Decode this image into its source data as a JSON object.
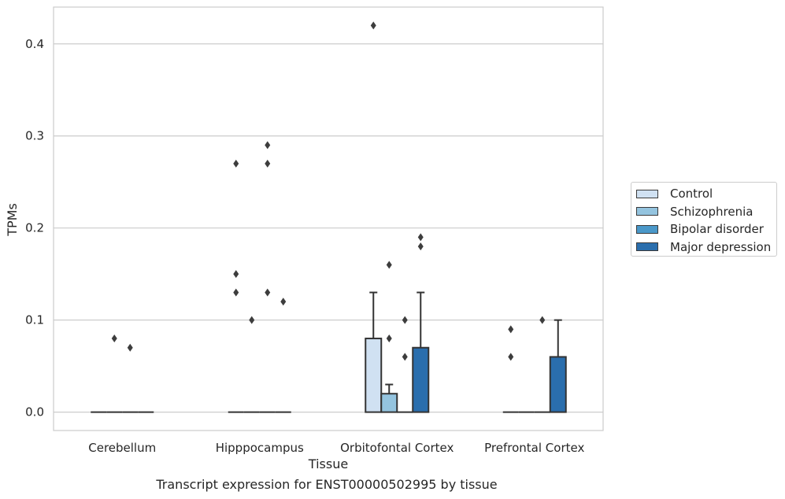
{
  "chart_data": {
    "type": "bar",
    "xlabel": "Tissue",
    "ylabel": "TPMs",
    "ylim": [
      -0.02,
      0.44
    ],
    "yticks": [
      0.0,
      0.1,
      0.2,
      0.3,
      0.4
    ],
    "ytick_labels": [
      "0.0",
      "0.1",
      "0.2",
      "0.3",
      "0.4"
    ],
    "grid": "horizontal",
    "legend_position": "right",
    "categories": [
      "Cerebellum",
      "Hipppocampus",
      "Orbitofontal Cortex",
      "Prefrontal Cortex"
    ],
    "series": [
      {
        "name": "Control",
        "color": "#d0e1f2",
        "values": [
          0.0,
          0.0,
          0.08,
          0.0
        ],
        "whisker_max": [
          null,
          null,
          0.13,
          null
        ],
        "outliers": [
          [],
          [
            0.27,
            0.15,
            0.13
          ],
          [
            0.42
          ],
          [
            0.09,
            0.06
          ]
        ]
      },
      {
        "name": "Schizophrenia",
        "color": "#94c4df",
        "values": [
          0.0,
          0.0,
          0.02,
          0.0
        ],
        "whisker_max": [
          null,
          null,
          0.03,
          null
        ],
        "outliers": [
          [
            0.08
          ],
          [
            0.1
          ],
          [
            0.16,
            0.08
          ],
          []
        ]
      },
      {
        "name": "Bipolar disorder",
        "color": "#4a98c9",
        "values": [
          0.0,
          0.0,
          0.0,
          0.0
        ],
        "whisker_max": [
          null,
          null,
          null,
          null
        ],
        "outliers": [
          [
            0.07
          ],
          [
            0.29,
            0.27,
            0.13
          ],
          [
            0.1,
            0.06
          ],
          [
            0.1
          ]
        ]
      },
      {
        "name": "Major depression",
        "color": "#2a6ead",
        "values": [
          0.0,
          0.0,
          0.07,
          0.06
        ],
        "whisker_max": [
          null,
          null,
          0.13,
          0.1
        ],
        "outliers": [
          [],
          [
            0.12
          ],
          [
            0.19,
            0.18
          ],
          []
        ]
      }
    ]
  },
  "caption": "Transcript expression for ENST00000502995 by tissue"
}
